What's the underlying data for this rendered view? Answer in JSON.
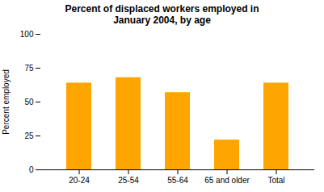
{
  "chart_data": {
    "type": "bar",
    "title": "Percent of displaced workers employed in\nJanuary 2004, by age",
    "ylabel": "Percent employed",
    "categories": [
      "20-24",
      "25-54",
      "55-64",
      "65 and older",
      "Total"
    ],
    "values": [
      64,
      68,
      57,
      22,
      64
    ],
    "color": "#FFA500",
    "ylim": [
      0,
      100
    ],
    "yticks": [
      0,
      25,
      50,
      75,
      100
    ],
    "grid": false
  }
}
